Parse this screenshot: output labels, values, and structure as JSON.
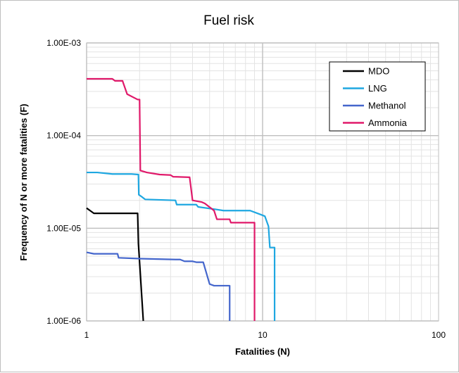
{
  "chart_data": {
    "type": "line",
    "title": "Fuel risk",
    "xlabel": "Fatalities (N)",
    "ylabel": "Frequency of N or more fatalities (F)",
    "xscale": "log",
    "yscale": "log",
    "xlim": [
      1,
      100
    ],
    "ylim": [
      1e-06,
      0.001
    ],
    "x_tick_labels": [
      "1",
      "10",
      "100"
    ],
    "x_tick_values": [
      1,
      10,
      100
    ],
    "y_tick_labels": [
      "1.00E-06",
      "1.00E-05",
      "1.00E-04",
      "1.00E-03"
    ],
    "y_tick_values": [
      1e-06,
      1e-05,
      0.0001,
      0.001
    ],
    "grid": true,
    "legend_position": "top-right",
    "series": [
      {
        "name": "MDO",
        "color": "#000000",
        "points": [
          [
            1,
            1.65e-05
          ],
          [
            1.1,
            1.45e-05
          ],
          [
            1.95,
            1.45e-05
          ],
          [
            1.97,
            6.8e-06
          ],
          [
            2.1,
            1e-06
          ]
        ]
      },
      {
        "name": "LNG",
        "color": "#1ea7e1",
        "points": [
          [
            1,
            4e-05
          ],
          [
            1.15,
            4e-05
          ],
          [
            1.4,
            3.85e-05
          ],
          [
            1.8,
            3.85e-05
          ],
          [
            1.97,
            3.8e-05
          ],
          [
            1.98,
            2.3e-05
          ],
          [
            2.05,
            2.2e-05
          ],
          [
            2.15,
            2.05e-05
          ],
          [
            3.2,
            2e-05
          ],
          [
            3.25,
            1.8e-05
          ],
          [
            4.2,
            1.8e-05
          ],
          [
            4.3,
            1.7e-05
          ],
          [
            5.4,
            1.6e-05
          ],
          [
            6.0,
            1.55e-05
          ],
          [
            8.5,
            1.55e-05
          ],
          [
            9.8,
            1.4e-05
          ],
          [
            10.3,
            1.35e-05
          ],
          [
            10.8,
            1.05e-05
          ],
          [
            11.0,
            6.2e-06
          ],
          [
            11.7,
            6.2e-06
          ],
          [
            11.7,
            1e-06
          ]
        ]
      },
      {
        "name": "Methanol",
        "color": "#4466cc",
        "points": [
          [
            1,
            5.5e-06
          ],
          [
            1.1,
            5.3e-06
          ],
          [
            1.5,
            5.3e-06
          ],
          [
            1.52,
            4.8e-06
          ],
          [
            2.0,
            4.7e-06
          ],
          [
            3.2,
            4.6e-06
          ],
          [
            3.4,
            4.6e-06
          ],
          [
            3.6,
            4.4e-06
          ],
          [
            4.0,
            4.4e-06
          ],
          [
            4.2,
            4.3e-06
          ],
          [
            4.6,
            4.3e-06
          ],
          [
            5.0,
            2.5e-06
          ],
          [
            5.3,
            2.4e-06
          ],
          [
            6.5,
            2.4e-06
          ],
          [
            6.5,
            1e-06
          ]
        ]
      },
      {
        "name": "Ammonia",
        "color": "#e0196a",
        "points": [
          [
            1,
            0.00041
          ],
          [
            1.4,
            0.00041
          ],
          [
            1.45,
            0.00039
          ],
          [
            1.6,
            0.00039
          ],
          [
            1.7,
            0.00028
          ],
          [
            1.95,
            0.000245
          ],
          [
            2.0,
            0.000245
          ],
          [
            2.02,
            4.2e-05
          ],
          [
            2.2,
            4e-05
          ],
          [
            2.6,
            3.8e-05
          ],
          [
            3.0,
            3.75e-05
          ],
          [
            3.1,
            3.6e-05
          ],
          [
            3.85,
            3.55e-05
          ],
          [
            4.0,
            2e-05
          ],
          [
            4.5,
            1.92e-05
          ],
          [
            4.7,
            1.85e-05
          ],
          [
            5.3,
            1.55e-05
          ],
          [
            5.5,
            1.25e-05
          ],
          [
            6.5,
            1.25e-05
          ],
          [
            6.6,
            1.15e-05
          ],
          [
            9.0,
            1.15e-05
          ],
          [
            9.0,
            1e-06
          ]
        ]
      }
    ]
  }
}
